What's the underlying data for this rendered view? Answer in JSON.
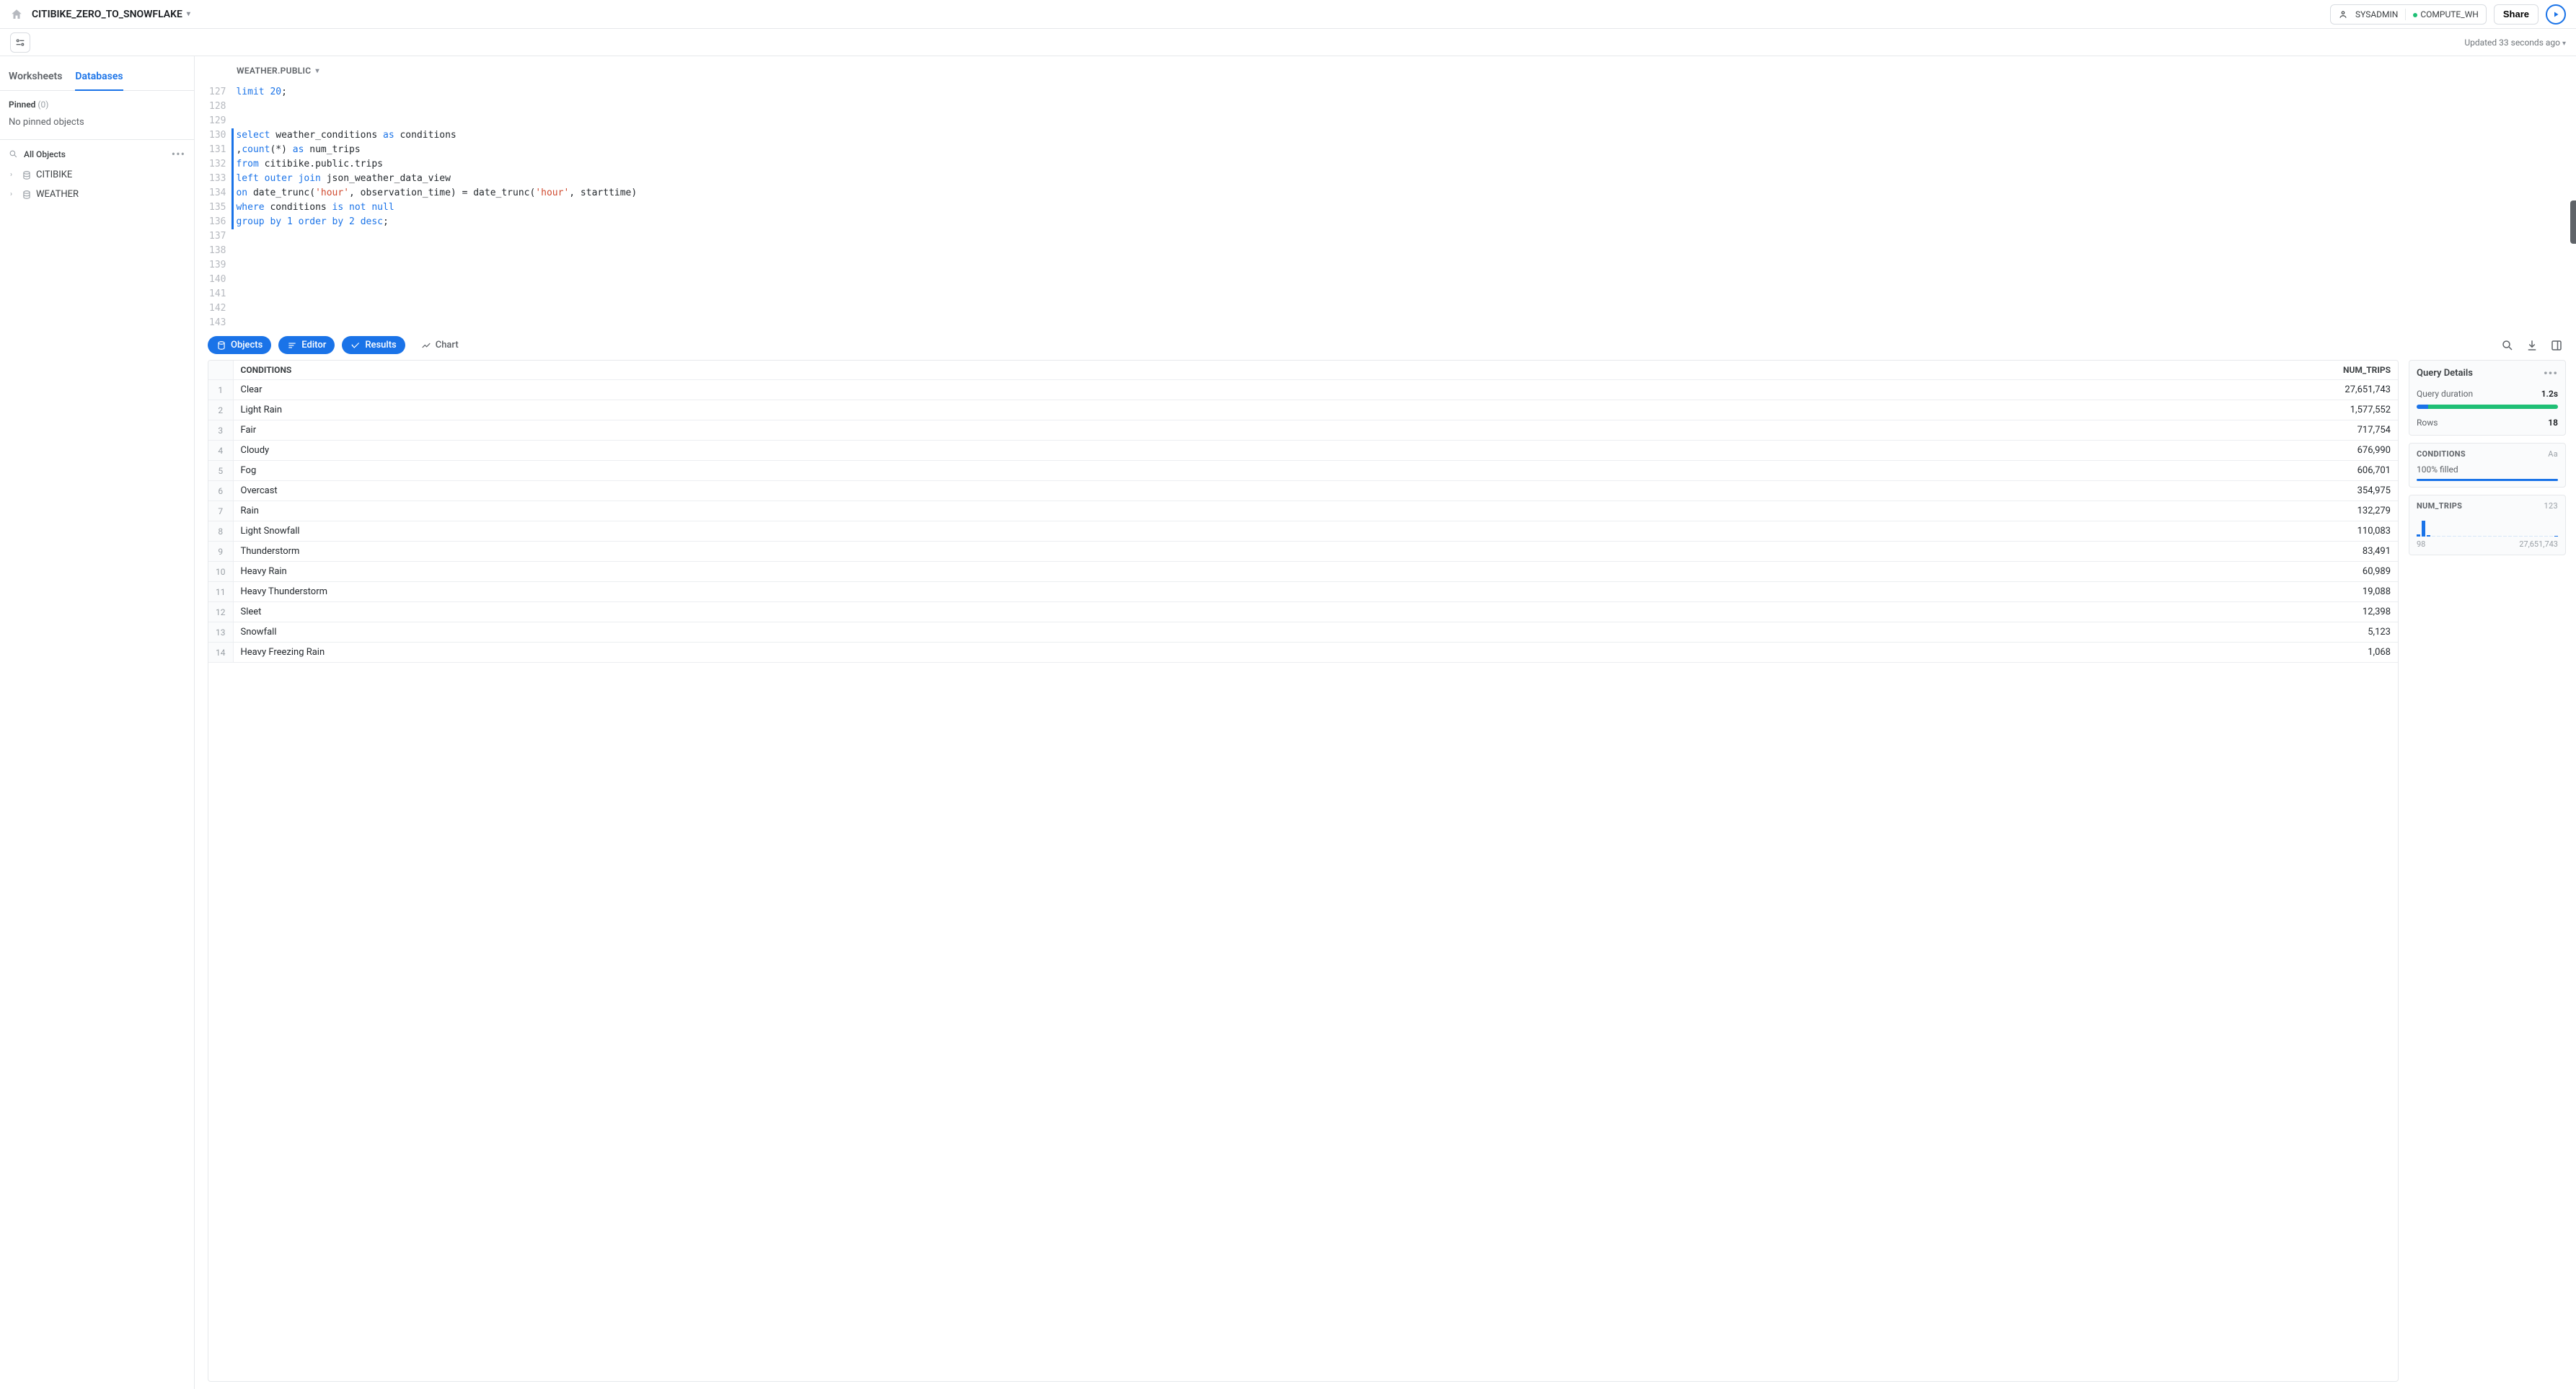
{
  "header": {
    "worksheet_title": "CITIBIKE_ZERO_TO_SNOWFLAKE",
    "role": "SYSADMIN",
    "warehouse": "COMPUTE_WH",
    "share_label": "Share"
  },
  "subheader": {
    "updated_text": "Updated 33 seconds ago"
  },
  "sidebar": {
    "tabs": {
      "worksheets": "Worksheets",
      "databases": "Databases"
    },
    "active_tab": "databases",
    "pinned_label": "Pinned",
    "pinned_count": "(0)",
    "pinned_empty": "No pinned objects",
    "all_objects_label": "All Objects",
    "databases": [
      {
        "name": "CITIBIKE"
      },
      {
        "name": "WEATHER"
      }
    ]
  },
  "context": {
    "schema_path": "WEATHER.PUBLIC"
  },
  "editor": {
    "first_line": 127,
    "highlight_start": 130,
    "highlight_end": 136,
    "cursor_line": 137,
    "lines": [
      {
        "n": 127,
        "tokens": [
          [
            "kw",
            "limit"
          ],
          [
            "id",
            " "
          ],
          [
            "num",
            "20"
          ],
          [
            "id",
            ";"
          ]
        ]
      },
      {
        "n": 128,
        "tokens": []
      },
      {
        "n": 129,
        "tokens": []
      },
      {
        "n": 130,
        "tokens": [
          [
            "kw",
            "select"
          ],
          [
            "id",
            " weather_conditions "
          ],
          [
            "kw",
            "as"
          ],
          [
            "id",
            " conditions"
          ]
        ]
      },
      {
        "n": 131,
        "tokens": [
          [
            "id",
            ","
          ],
          [
            "kw",
            "count"
          ],
          [
            "id",
            "(*) "
          ],
          [
            "kw",
            "as"
          ],
          [
            "id",
            " num_trips"
          ]
        ]
      },
      {
        "n": 132,
        "tokens": [
          [
            "kw",
            "from"
          ],
          [
            "id",
            " citibike.public.trips"
          ]
        ]
      },
      {
        "n": 133,
        "tokens": [
          [
            "kw",
            "left outer join"
          ],
          [
            "id",
            " json_weather_data_view"
          ]
        ]
      },
      {
        "n": 134,
        "tokens": [
          [
            "kw",
            "on"
          ],
          [
            "id",
            " date_trunc("
          ],
          [
            "str",
            "'hour'"
          ],
          [
            "id",
            ", observation_time) = date_trunc("
          ],
          [
            "str",
            "'hour'"
          ],
          [
            "id",
            ", starttime)"
          ]
        ]
      },
      {
        "n": 135,
        "tokens": [
          [
            "kw",
            "where"
          ],
          [
            "id",
            " conditions "
          ],
          [
            "kw",
            "is not null"
          ]
        ]
      },
      {
        "n": 136,
        "tokens": [
          [
            "kw",
            "group by"
          ],
          [
            "id",
            " "
          ],
          [
            "num",
            "1"
          ],
          [
            "id",
            " "
          ],
          [
            "kw",
            "order by"
          ],
          [
            "id",
            " "
          ],
          [
            "num",
            "2"
          ],
          [
            "id",
            " "
          ],
          [
            "kw",
            "desc"
          ],
          [
            "id",
            ";"
          ]
        ]
      },
      {
        "n": 137,
        "tokens": []
      },
      {
        "n": 138,
        "tokens": []
      },
      {
        "n": 139,
        "tokens": []
      },
      {
        "n": 140,
        "tokens": []
      },
      {
        "n": 141,
        "tokens": []
      },
      {
        "n": 142,
        "tokens": []
      },
      {
        "n": 143,
        "tokens": []
      }
    ]
  },
  "viewtabs": {
    "objects": "Objects",
    "editor": "Editor",
    "results": "Results",
    "chart": "Chart"
  },
  "results": {
    "columns": [
      "CONDITIONS",
      "NUM_TRIPS"
    ],
    "rows": [
      [
        "Clear",
        "27,651,743"
      ],
      [
        "Light Rain",
        "1,577,552"
      ],
      [
        "Fair",
        "717,754"
      ],
      [
        "Cloudy",
        "676,990"
      ],
      [
        "Fog",
        "606,701"
      ],
      [
        "Overcast",
        "354,975"
      ],
      [
        "Rain",
        "132,279"
      ],
      [
        "Light Snowfall",
        "110,083"
      ],
      [
        "Thunderstorm",
        "83,491"
      ],
      [
        "Heavy Rain",
        "60,989"
      ],
      [
        "Heavy Thunderstorm",
        "19,088"
      ],
      [
        "Sleet",
        "12,398"
      ],
      [
        "Snowfall",
        "5,123"
      ],
      [
        "Heavy Freezing Rain",
        "1,068"
      ]
    ]
  },
  "details": {
    "title": "Query Details",
    "duration_label": "Query duration",
    "duration_value": "1.2s",
    "duration_bar": {
      "seg1_pct": 8,
      "seg2_pct": 92,
      "seg1_color": "#1a73e8",
      "seg2_color": "#1fbf75"
    },
    "rows_label": "Rows",
    "rows_value": "18",
    "col1": {
      "name": "CONDITIONS",
      "type_label": "Aa",
      "filled_label": "100% filled"
    },
    "col2": {
      "name": "NUM_TRIPS",
      "type_label": "123",
      "hist": [
        3,
        22,
        2,
        0,
        0,
        0,
        0,
        0,
        0,
        0,
        0,
        0,
        0,
        0,
        0,
        0,
        0,
        0,
        0,
        0,
        0,
        0,
        0,
        0,
        0,
        0,
        0,
        1
      ],
      "axis_min": "98",
      "axis_max": "27,651,743"
    }
  }
}
